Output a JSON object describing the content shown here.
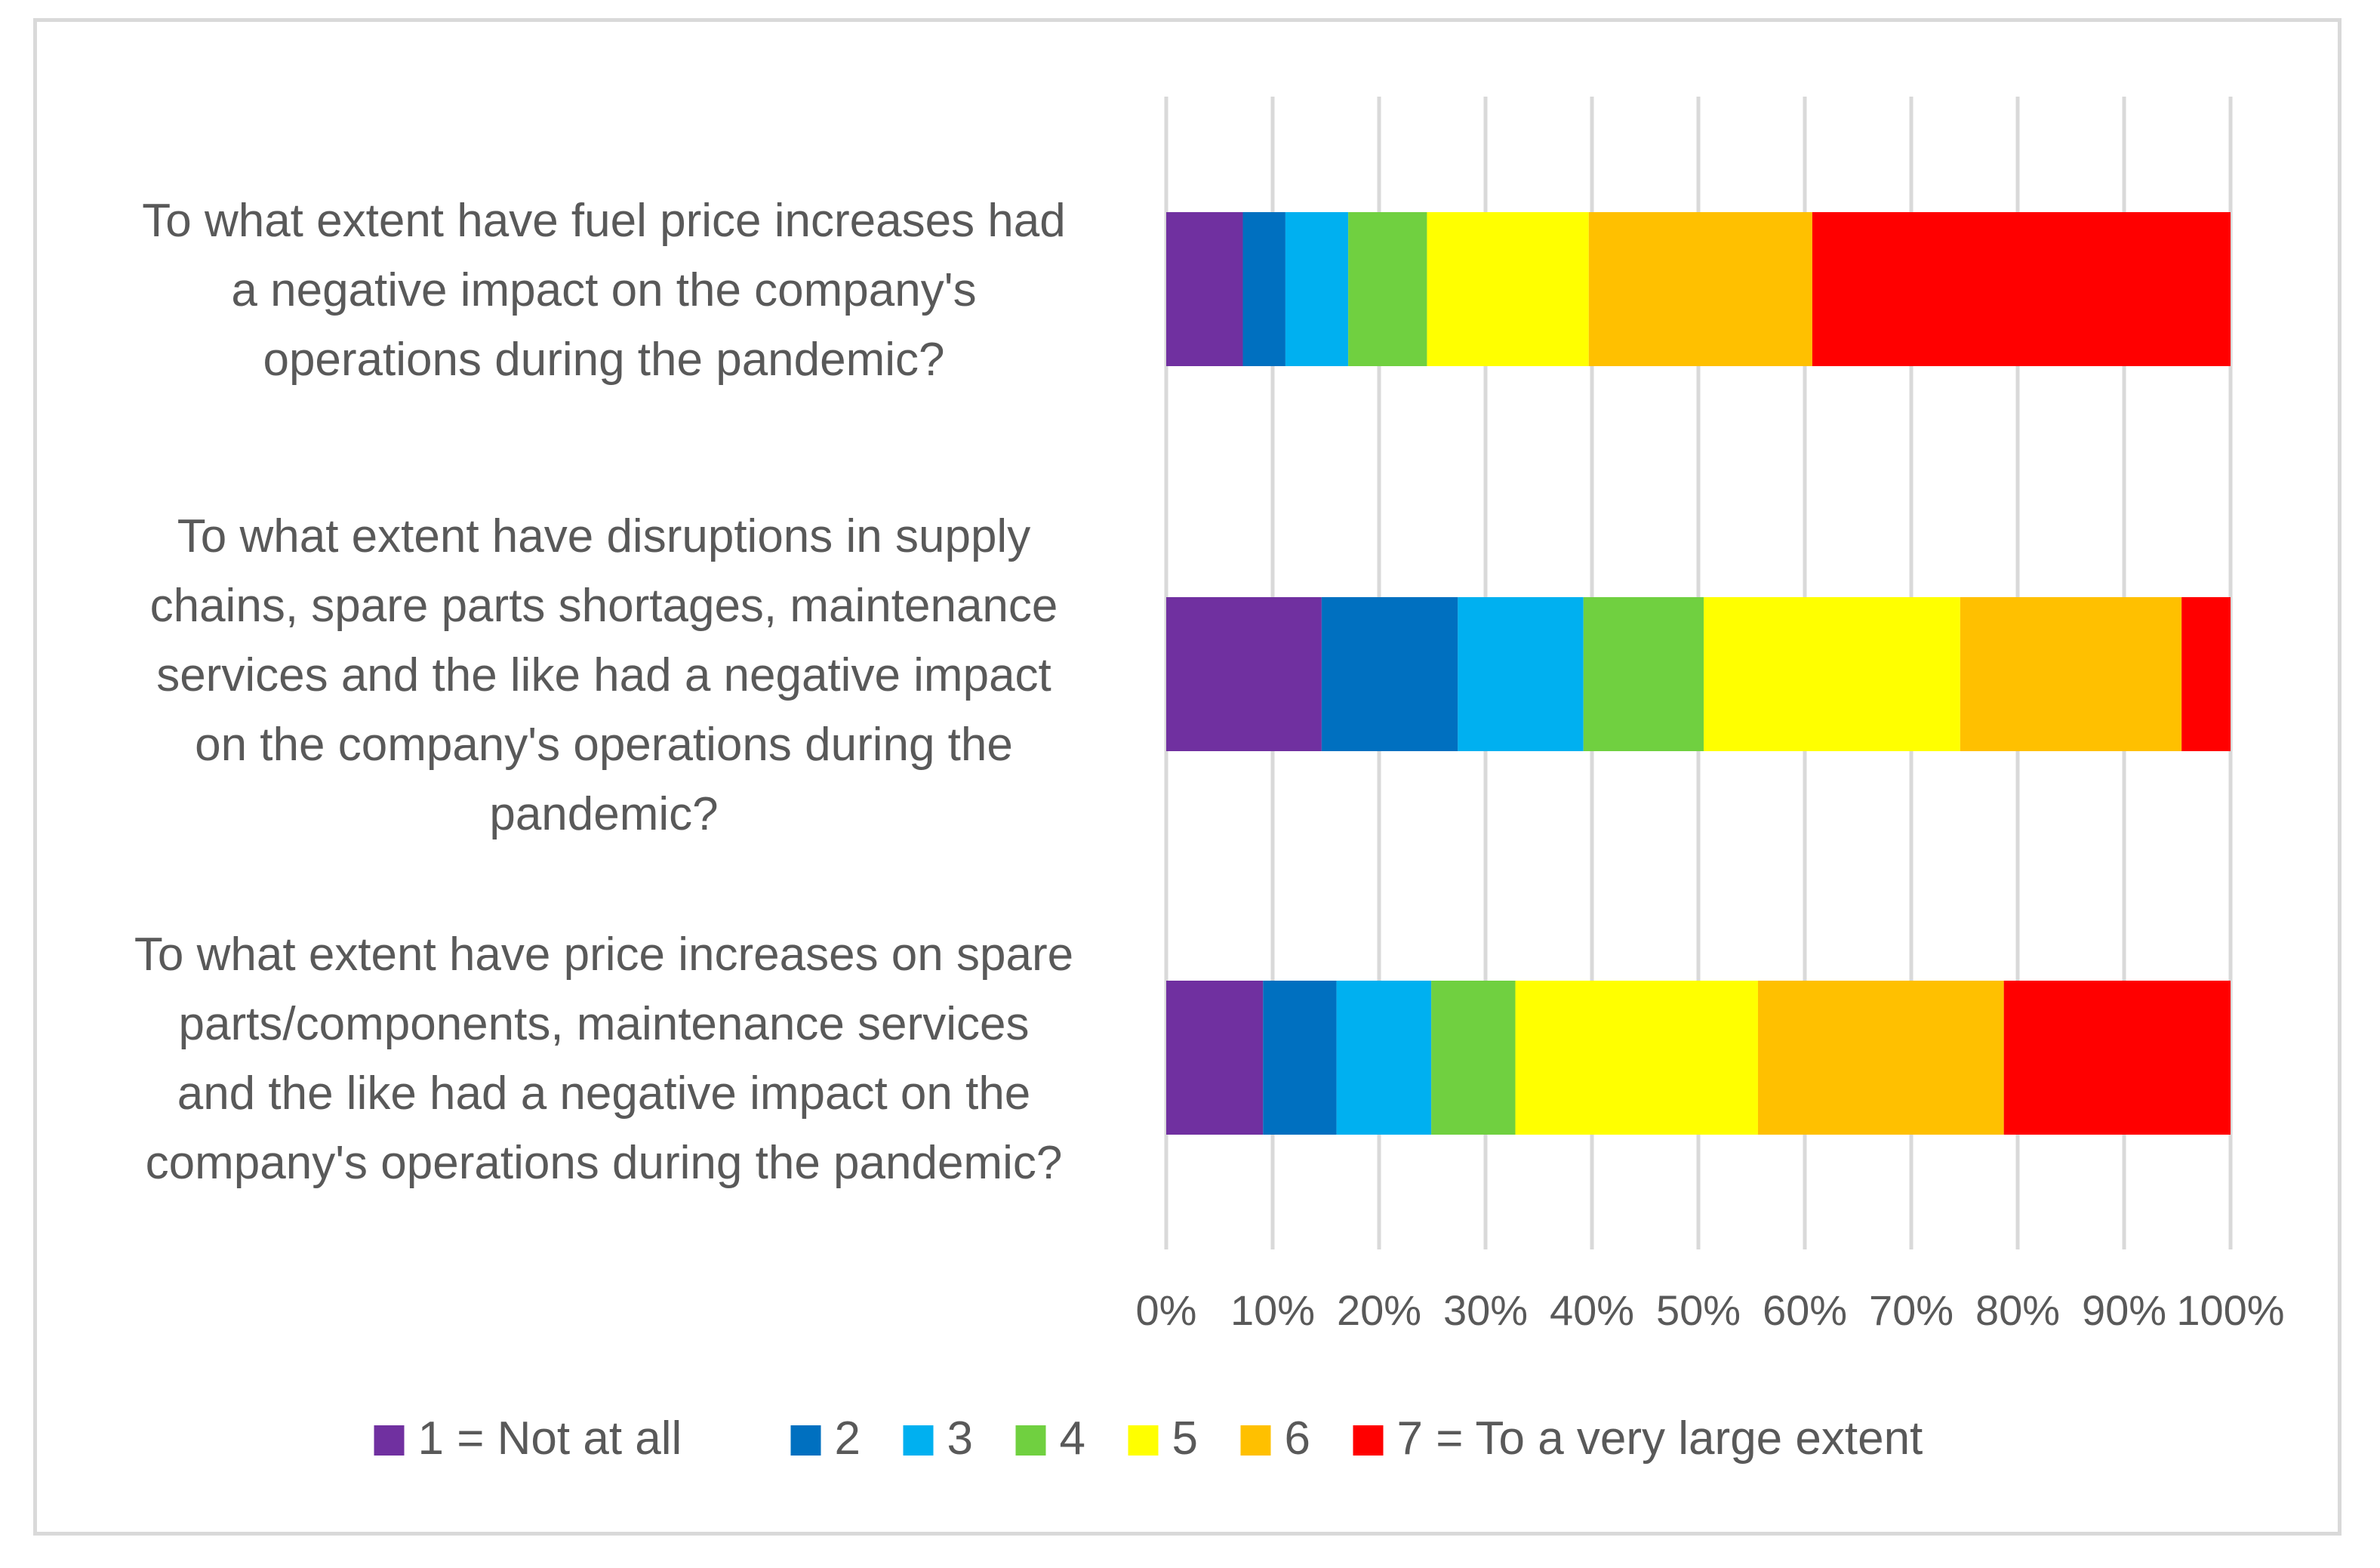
{
  "chart_data": {
    "type": "bar",
    "orientation": "horizontal",
    "stacked": true,
    "percent_stacked": true,
    "title": "",
    "xlabel": "",
    "ylabel": "",
    "xlim": [
      0,
      100
    ],
    "grid": true,
    "legend_position": "bottom",
    "x_tick_labels": [
      "0%",
      "10%",
      "20%",
      "30%",
      "40%",
      "50%",
      "60%",
      "70%",
      "80%",
      "90%",
      "100%"
    ],
    "categories": [
      {
        "label_lines": [
          "To what extent have fuel price increases had",
          "a negative impact on the company's",
          "operations during the pandemic?"
        ]
      },
      {
        "label_lines": [
          "To what extent have disruptions in supply",
          "chains, spare parts shortages, maintenance",
          "services and the like had a negative impact",
          "on the company's operations during the",
          "pandemic?"
        ]
      },
      {
        "label_lines": [
          "To what extent have price increases on spare",
          "parts/components, maintenance services",
          "and the like had a negative impact on the",
          "company's operations during the pandemic?"
        ]
      }
    ],
    "series": [
      {
        "name": "1 = Not at all",
        "color": "#7030A0",
        "values": [
          7.2,
          14.6,
          9.1
        ]
      },
      {
        "name": "2",
        "color": "#0070C0",
        "values": [
          4.0,
          12.8,
          6.9
        ]
      },
      {
        "name": "3",
        "color": "#00B0F0",
        "values": [
          5.9,
          11.8,
          8.9
        ]
      },
      {
        "name": "4",
        "color": "#70D040",
        "values": [
          7.4,
          11.3,
          7.9
        ]
      },
      {
        "name": "5",
        "color": "#FFFF00",
        "values": [
          15.2,
          24.1,
          22.8
        ]
      },
      {
        "name": "6",
        "color": "#FFC000",
        "values": [
          21.0,
          20.8,
          23.1
        ]
      },
      {
        "name": "7 = To a very large extent",
        "color": "#FF0000",
        "values": [
          39.3,
          4.6,
          21.3
        ]
      }
    ]
  }
}
